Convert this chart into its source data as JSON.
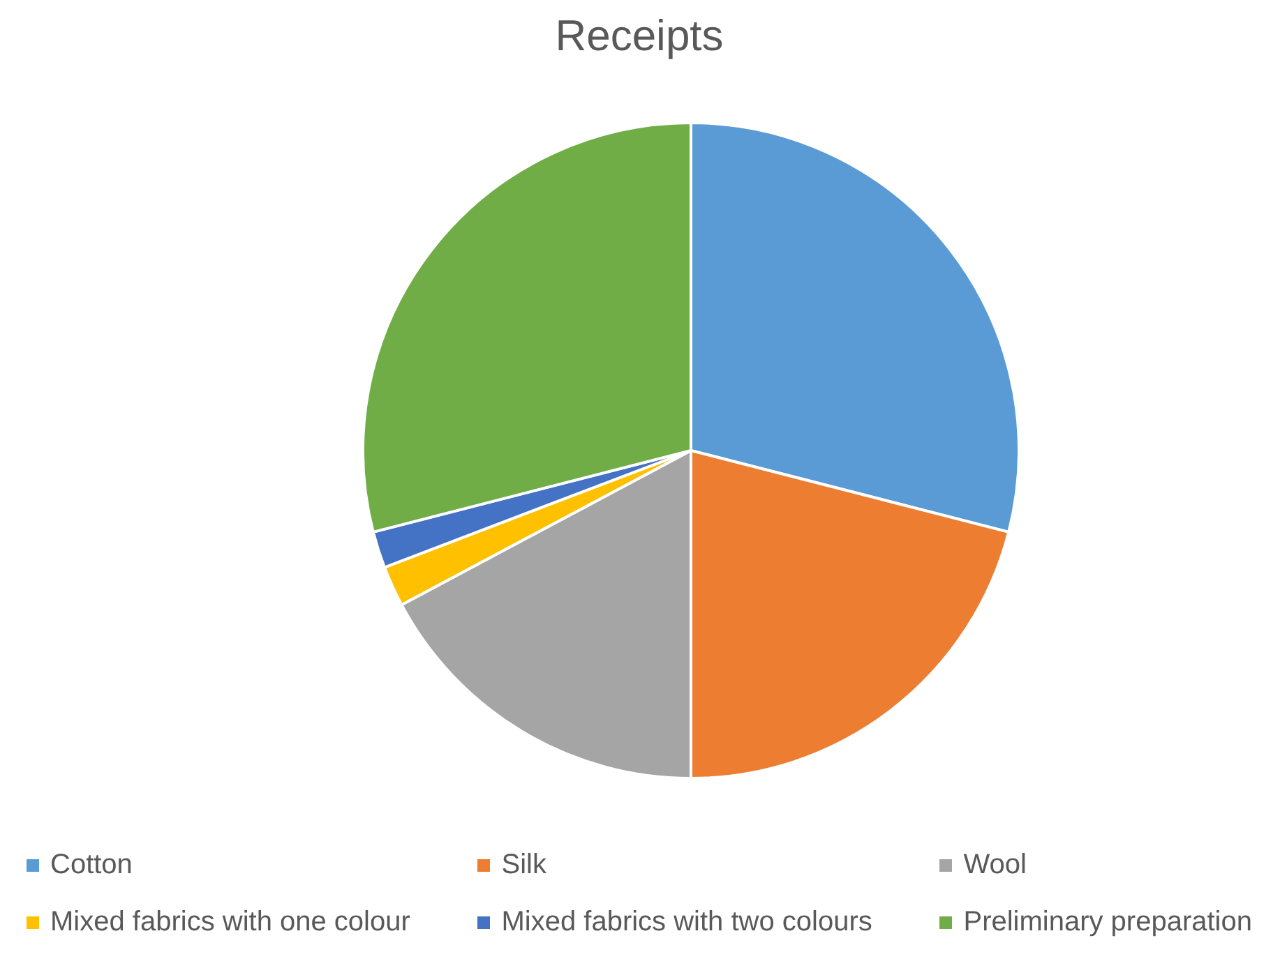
{
  "chart_data": {
    "type": "pie",
    "title": "Receipts",
    "categories": [
      "Cotton",
      "Silk",
      "Wool",
      "Mixed fabrics with one colour",
      "Mixed fabrics with two colours",
      "Preliminary preparation"
    ],
    "values": [
      29,
      21,
      17.2,
      2,
      1.8,
      29
    ],
    "colors": [
      "#5b9bd5",
      "#ed7d31",
      "#a5a5a5",
      "#ffc000",
      "#4472c4",
      "#70ad47"
    ],
    "legend": "bottom"
  }
}
